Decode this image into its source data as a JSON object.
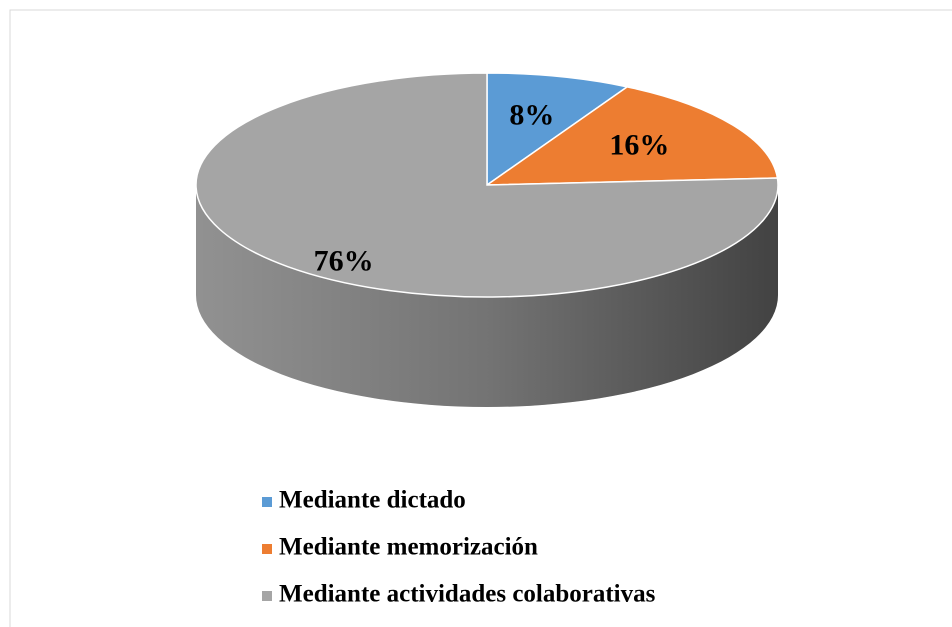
{
  "chart_data": {
    "type": "pie",
    "categories": [
      "Mediante dictado",
      "Mediante memorización",
      "Mediante actividades colaborativas"
    ],
    "series": [
      {
        "values": [
          8,
          16,
          76
        ],
        "value_labels": [
          "8%",
          "16%",
          "76%"
        ],
        "colors": [
          "#5b9bd5",
          "#ed7d31",
          "#a5a5a5"
        ]
      }
    ],
    "legend": "bottom"
  }
}
